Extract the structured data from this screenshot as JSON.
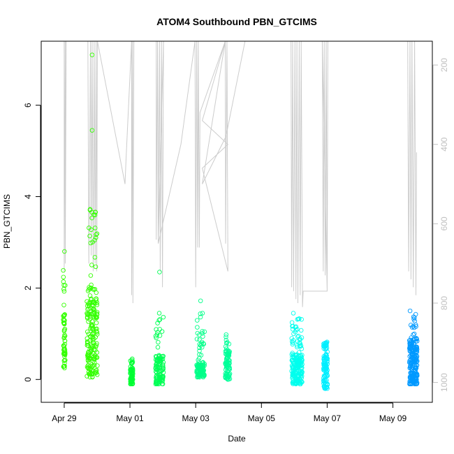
{
  "chart_data": {
    "type": "scatter",
    "title": "ATOM4 Southbound PBN_GTCIMS",
    "xlabel": "Date",
    "ylabel": "PBN_GTCIMS",
    "x_range_days": [
      -0.7,
      11.2
    ],
    "ylim": [
      -0.5,
      7.4
    ],
    "x_ticks": [
      {
        "day": 0,
        "label": "Apr 29"
      },
      {
        "day": 2,
        "label": "May 01"
      },
      {
        "day": 4,
        "label": "May 03"
      },
      {
        "day": 6,
        "label": "May 05"
      },
      {
        "day": 8,
        "label": "May 07"
      },
      {
        "day": 10,
        "label": "May 09"
      }
    ],
    "y_ticks": [
      0,
      2,
      4,
      6
    ],
    "y2_ticks": [
      200,
      400,
      600,
      800,
      1000
    ],
    "y2_range": [
      1050,
      140
    ],
    "y2_axis_color": "#c0c0c0",
    "altitude_line_color": "#cccccc",
    "point_clusters": [
      {
        "center_day": 0.0,
        "spread": 0.03,
        "n": 60,
        "ymin": 0.25,
        "ymax": 2.8,
        "typical": 0.9,
        "color": "#33ff00"
      },
      {
        "center_day": 0.85,
        "spread": 0.16,
        "n": 200,
        "ymin": 0.05,
        "ymax": 3.72,
        "typical": 1.0,
        "outliers": [
          5.45,
          7.1
        ],
        "color": "#33ff00"
      },
      {
        "center_day": 2.05,
        "spread": 0.04,
        "n": 70,
        "ymin": -0.1,
        "ymax": 0.45,
        "typical": 0.1,
        "color": "#00ff33"
      },
      {
        "center_day": 2.9,
        "spread": 0.12,
        "n": 120,
        "ymin": -0.1,
        "ymax": 1.45,
        "typical": 0.25,
        "outliers": [
          2.35
        ],
        "color": "#00ff55"
      },
      {
        "center_day": 4.15,
        "spread": 0.12,
        "n": 110,
        "ymin": 0.05,
        "ymax": 1.45,
        "typical": 0.22,
        "outliers": [
          1.72
        ],
        "color": "#00ff88"
      },
      {
        "center_day": 4.97,
        "spread": 0.07,
        "n": 90,
        "ymin": 0.0,
        "ymax": 0.98,
        "typical": 0.35,
        "color": "#00ff99"
      },
      {
        "center_day": 7.08,
        "spread": 0.16,
        "n": 200,
        "ymin": -0.1,
        "ymax": 1.45,
        "typical": 0.25,
        "color": "#00ffee"
      },
      {
        "center_day": 7.95,
        "spread": 0.06,
        "n": 110,
        "ymin": -0.2,
        "ymax": 0.82,
        "typical": 0.35,
        "color": "#00eeff"
      },
      {
        "center_day": 10.62,
        "spread": 0.12,
        "n": 200,
        "ymin": -0.1,
        "ymax": 1.5,
        "typical": 0.45,
        "color": "#0099ff"
      }
    ],
    "altitude_profile": [
      {
        "day": -0.7,
        "p": 140
      },
      {
        "day": 0.0,
        "p": 140
      },
      {
        "day": 0.0,
        "p": 720
      },
      {
        "day": 0.03,
        "p": 140
      },
      {
        "day": 0.03,
        "p": 700
      },
      {
        "day": 0.06,
        "p": 140
      },
      {
        "day": 0.72,
        "p": 140
      },
      {
        "day": 0.75,
        "p": 700
      },
      {
        "day": 0.8,
        "p": 140
      },
      {
        "day": 0.82,
        "p": 680
      },
      {
        "day": 0.85,
        "p": 140
      },
      {
        "day": 0.88,
        "p": 720
      },
      {
        "day": 0.91,
        "p": 140
      },
      {
        "day": 0.94,
        "p": 700
      },
      {
        "day": 0.97,
        "p": 140
      },
      {
        "day": 0.99,
        "p": 720
      },
      {
        "day": 1.01,
        "p": 140
      },
      {
        "day": 1.85,
        "p": 500
      },
      {
        "day": 1.88,
        "p": 440
      },
      {
        "day": 2.05,
        "p": 140
      },
      {
        "day": 2.05,
        "p": 780
      },
      {
        "day": 2.08,
        "p": 140
      },
      {
        "day": 2.09,
        "p": 800
      },
      {
        "day": 2.12,
        "p": 140
      },
      {
        "day": 2.8,
        "p": 140
      },
      {
        "day": 2.8,
        "p": 640
      },
      {
        "day": 2.84,
        "p": 140
      },
      {
        "day": 2.86,
        "p": 650
      },
      {
        "day": 2.9,
        "p": 140
      },
      {
        "day": 2.92,
        "p": 720
      },
      {
        "day": 2.96,
        "p": 140
      },
      {
        "day": 2.99,
        "p": 760
      },
      {
        "day": 3.02,
        "p": 140
      },
      {
        "day": 2.86,
        "p": 650
      },
      {
        "day": 3.55,
        "p": 400
      },
      {
        "day": 3.98,
        "p": 140
      },
      {
        "day": 4.0,
        "p": 760
      },
      {
        "day": 4.03,
        "p": 140
      },
      {
        "day": 4.06,
        "p": 660
      },
      {
        "day": 4.08,
        "p": 140
      },
      {
        "day": 4.11,
        "p": 660
      },
      {
        "day": 4.13,
        "p": 320
      },
      {
        "day": 4.9,
        "p": 140
      },
      {
        "day": 4.91,
        "p": 650
      },
      {
        "day": 4.95,
        "p": 140
      },
      {
        "day": 4.98,
        "p": 720
      },
      {
        "day": 4.2,
        "p": 460
      },
      {
        "day": 4.98,
        "p": 400
      },
      {
        "day": 4.2,
        "p": 340
      },
      {
        "day": 4.9,
        "p": 140
      },
      {
        "day": 4.2,
        "p": 500
      },
      {
        "day": 4.92,
        "p": 380
      },
      {
        "day": 5.5,
        "p": 140
      },
      {
        "day": 6.6,
        "p": 140
      },
      {
        "day": 6.9,
        "p": 140
      },
      {
        "day": 6.92,
        "p": 760
      },
      {
        "day": 6.95,
        "p": 140
      },
      {
        "day": 6.98,
        "p": 770
      },
      {
        "day": 7.02,
        "p": 140
      },
      {
        "day": 7.05,
        "p": 790
      },
      {
        "day": 7.08,
        "p": 140
      },
      {
        "day": 7.11,
        "p": 800
      },
      {
        "day": 7.15,
        "p": 140
      },
      {
        "day": 7.18,
        "p": 780
      },
      {
        "day": 7.21,
        "p": 140
      },
      {
        "day": 7.25,
        "p": 810
      },
      {
        "day": 7.27,
        "p": 770
      },
      {
        "day": 8.0,
        "p": 770
      },
      {
        "day": 7.85,
        "p": 140
      },
      {
        "day": 7.88,
        "p": 720
      },
      {
        "day": 7.91,
        "p": 140
      },
      {
        "day": 7.94,
        "p": 730
      },
      {
        "day": 7.97,
        "p": 140
      },
      {
        "day": 8.0,
        "p": 770
      },
      {
        "day": 8.02,
        "p": 140
      },
      {
        "day": 10.45,
        "p": 140
      },
      {
        "day": 10.48,
        "p": 720
      },
      {
        "day": 10.52,
        "p": 140
      },
      {
        "day": 10.55,
        "p": 740
      },
      {
        "day": 10.58,
        "p": 140
      },
      {
        "day": 10.62,
        "p": 760
      },
      {
        "day": 10.66,
        "p": 140
      },
      {
        "day": 10.7,
        "p": 780
      },
      {
        "day": 10.72,
        "p": 420
      }
    ]
  }
}
